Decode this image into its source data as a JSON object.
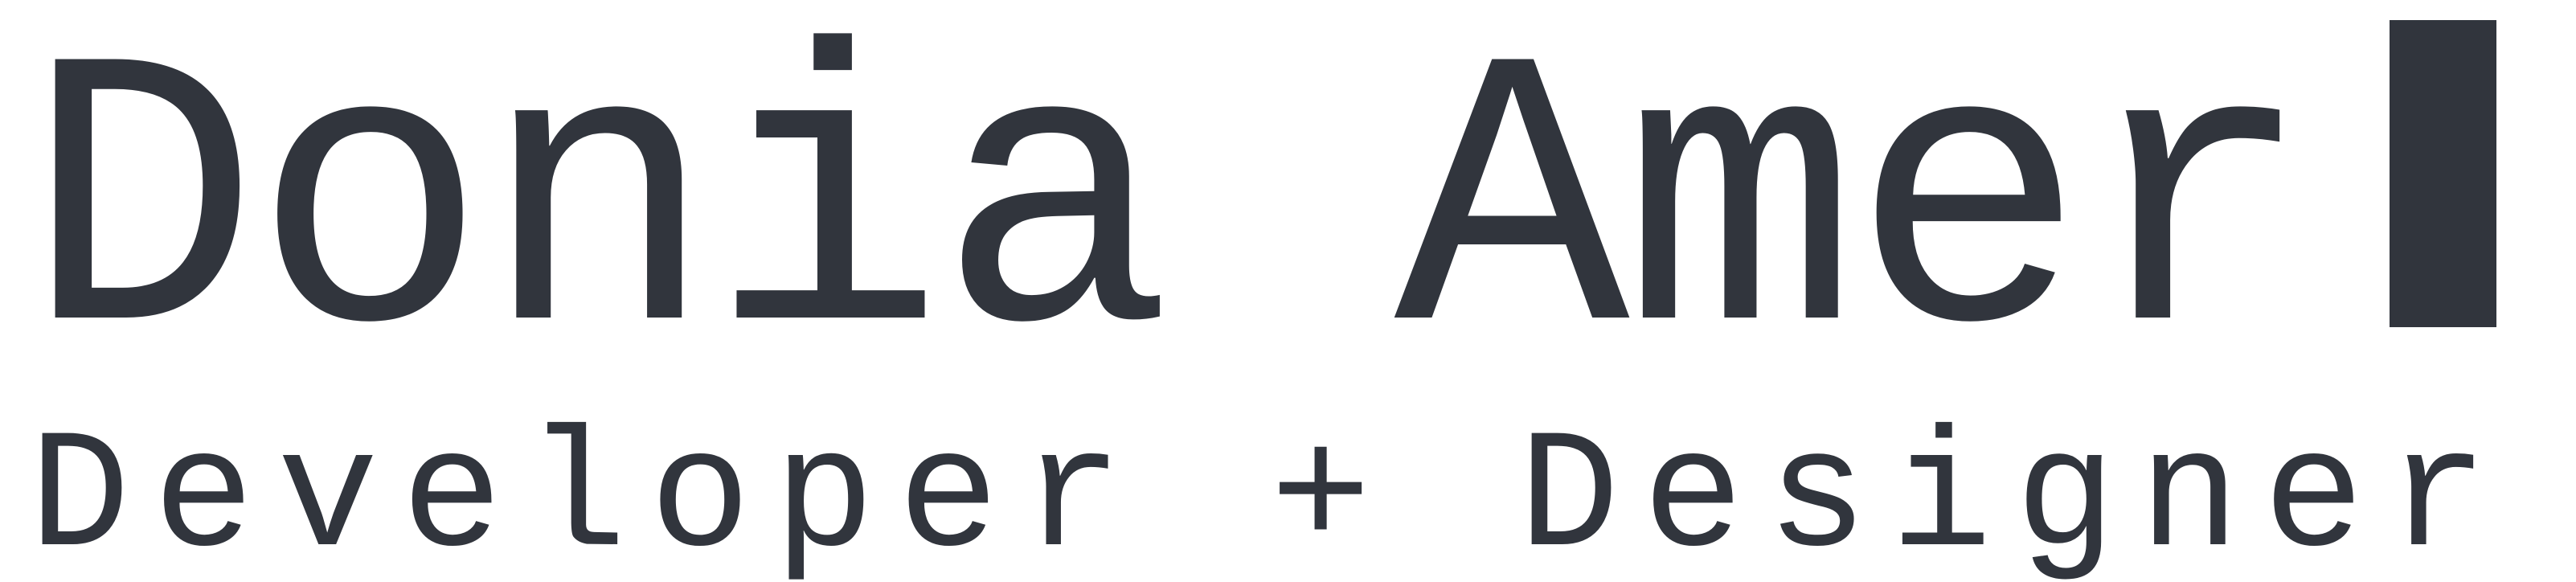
{
  "title": "Donia Amer",
  "subtitle": "Developer + Designer"
}
